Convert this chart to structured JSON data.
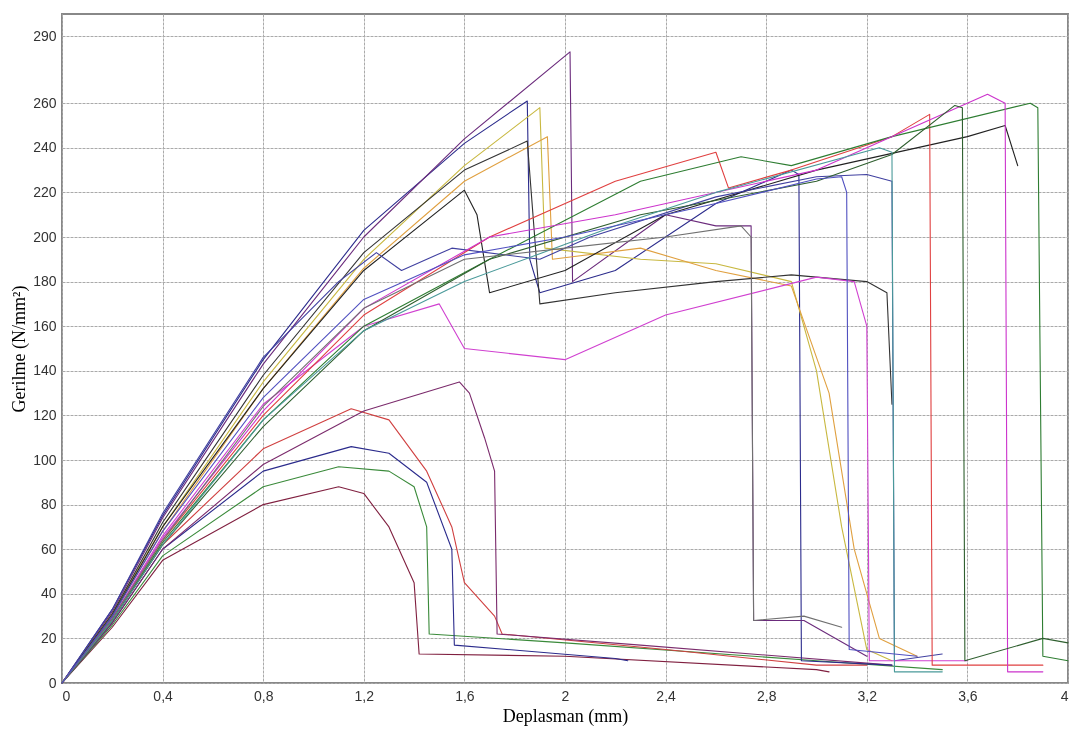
{
  "chart_data": {
    "type": "line",
    "xlabel": "Deplasman (mm)",
    "ylabel": "Gerilme (N/mm²)",
    "xlim": [
      0,
      4
    ],
    "ylim": [
      0,
      300
    ],
    "xticks": [
      0,
      {
        "value": 0.4,
        "label": "0,4"
      },
      {
        "value": 0.8,
        "label": "0,8"
      },
      {
        "value": 1.2,
        "label": "1,2"
      },
      {
        "value": 1.6,
        "label": "1,6"
      },
      2,
      {
        "value": 2.4,
        "label": "2,4"
      },
      {
        "value": 2.8,
        "label": "2,8"
      },
      {
        "value": 3.2,
        "label": "3,2"
      },
      {
        "value": 3.6,
        "label": "3,6"
      },
      4
    ],
    "yticks": [
      0,
      20,
      40,
      60,
      80,
      100,
      120,
      140,
      160,
      180,
      200,
      220,
      240,
      260,
      290
    ],
    "grid": true,
    "legend": false,
    "line_style": "solid",
    "marker": "none",
    "series": [
      {
        "color": "#802040",
        "x": [
          0,
          0.2,
          0.4,
          0.8,
          1.1,
          1.2,
          1.3,
          1.4,
          1.42,
          2,
          3,
          3.05
        ],
        "values": [
          0,
          25,
          55,
          80,
          88,
          85,
          70,
          45,
          13,
          12,
          6,
          5
        ]
      },
      {
        "color": "#3a8a3a",
        "x": [
          0,
          0.2,
          0.4,
          0.8,
          1.1,
          1.3,
          1.4,
          1.45,
          1.46,
          2,
          3,
          3.5
        ],
        "values": [
          0,
          26,
          57,
          88,
          97,
          95,
          88,
          70,
          22,
          18,
          10,
          6
        ]
      },
      {
        "color": "#2b2b8c",
        "x": [
          0,
          0.2,
          0.4,
          0.8,
          1.15,
          1.3,
          1.45,
          1.55,
          1.56,
          2.2,
          2.25
        ],
        "values": [
          0,
          27,
          60,
          95,
          106,
          103,
          90,
          60,
          17,
          11,
          10
        ]
      },
      {
        "color": "#d04040",
        "x": [
          0,
          0.2,
          0.4,
          0.8,
          1.15,
          1.3,
          1.45,
          1.55,
          1.6,
          1.72,
          1.75,
          2.4,
          3,
          3.2
        ],
        "values": [
          0,
          28,
          62,
          105,
          123,
          118,
          95,
          70,
          45,
          30,
          22,
          15,
          8,
          8
        ]
      },
      {
        "color": "#7b2b6c",
        "x": [
          0,
          0.2,
          0.4,
          0.8,
          1.2,
          1.58,
          1.62,
          1.68,
          1.72,
          1.73,
          2.3,
          3.3
        ],
        "values": [
          0,
          27,
          60,
          98,
          122,
          135,
          130,
          110,
          95,
          22,
          17,
          8
        ]
      },
      {
        "color": "#2b2b8c",
        "x": [
          0,
          0.2,
          0.4,
          0.8,
          1.2,
          1.6,
          1.85,
          1.86,
          1.9,
          2.2,
          2.6,
          2.9,
          2.93,
          2.94,
          3.3
        ],
        "values": [
          0,
          33,
          75,
          145,
          203,
          242,
          261,
          190,
          175,
          185,
          215,
          230,
          228,
          10,
          8
        ]
      },
      {
        "color": "#6b2b7c",
        "x": [
          0,
          0.2,
          0.4,
          0.8,
          1.2,
          1.6,
          2.02,
          2.03,
          2.4,
          2.6,
          2.74,
          2.75,
          2.95,
          3.2
        ],
        "values": [
          0,
          32,
          74,
          143,
          200,
          244,
          283,
          180,
          210,
          205,
          205,
          28,
          28,
          12
        ]
      },
      {
        "color": "#c8b840",
        "x": [
          0,
          0.2,
          0.4,
          0.8,
          1.2,
          1.6,
          1.9,
          1.92,
          2.3,
          2.6,
          2.9,
          3,
          3.1,
          3.2,
          3.3
        ],
        "values": [
          0,
          31,
          70,
          135,
          190,
          232,
          258,
          195,
          190,
          188,
          180,
          140,
          70,
          15,
          10
        ]
      },
      {
        "color": "#e0a040",
        "x": [
          0,
          0.2,
          0.4,
          0.8,
          1.2,
          1.6,
          1.93,
          1.95,
          2.3,
          2.6,
          2.9,
          3.05,
          3.15,
          3.25,
          3.4
        ],
        "values": [
          0,
          30,
          68,
          132,
          186,
          225,
          245,
          190,
          195,
          185,
          178,
          130,
          60,
          20,
          12
        ]
      },
      {
        "color": "#333333",
        "x": [
          0,
          0.2,
          0.4,
          0.8,
          1.2,
          1.6,
          1.85,
          1.9,
          2.2,
          2.6,
          2.9,
          3.2,
          3.28,
          3.3
        ],
        "values": [
          0,
          31,
          72,
          138,
          193,
          230,
          243,
          170,
          175,
          180,
          183,
          180,
          175,
          125
        ]
      },
      {
        "color": "#222222",
        "x": [
          0,
          0.2,
          0.4,
          0.8,
          1.2,
          1.6,
          1.65,
          1.7,
          2,
          2.4,
          3,
          3.6,
          3.75,
          3.8
        ],
        "values": [
          0,
          30,
          70,
          132,
          185,
          221,
          210,
          175,
          185,
          210,
          230,
          245,
          250,
          232
        ]
      },
      {
        "color": "#4040a0",
        "x": [
          0,
          0.2,
          0.4,
          0.8,
          1.1,
          1.25,
          1.35,
          1.55,
          1.9,
          2.1,
          2.6,
          3,
          3.2,
          3.3,
          3.31,
          3.5
        ],
        "values": [
          0,
          33,
          76,
          146,
          180,
          193,
          185,
          195,
          190,
          200,
          218,
          227,
          228,
          225,
          10,
          13
        ]
      },
      {
        "color": "#d040d0",
        "x": [
          0,
          0.2,
          0.4,
          0.8,
          1.2,
          1.5,
          1.6,
          2,
          2.4,
          3,
          3.15,
          3.2,
          3.21,
          3.6
        ],
        "values": [
          0,
          29,
          66,
          125,
          160,
          170,
          150,
          145,
          165,
          182,
          180,
          160,
          10,
          10
        ]
      },
      {
        "color": "#e04040",
        "x": [
          0,
          0.2,
          0.4,
          0.8,
          1.2,
          1.7,
          2.2,
          2.6,
          2.65,
          2.9,
          3.3,
          3.45,
          3.46,
          3.9
        ],
        "values": [
          0,
          28,
          64,
          120,
          165,
          200,
          225,
          238,
          222,
          230,
          245,
          255,
          8,
          8
        ]
      },
      {
        "color": "#2e7d32",
        "x": [
          0,
          0.2,
          0.4,
          0.8,
          1.2,
          1.7,
          2.3,
          2.7,
          2.9,
          3.3,
          3.85,
          3.88,
          3.9,
          4
        ],
        "values": [
          0,
          28,
          63,
          118,
          160,
          190,
          225,
          236,
          232,
          245,
          260,
          258,
          12,
          10
        ]
      },
      {
        "color": "#cc33cc",
        "x": [
          0,
          0.2,
          0.4,
          0.8,
          1.2,
          1.7,
          2.2,
          3,
          3.4,
          3.68,
          3.75,
          3.76,
          3.9
        ],
        "values": [
          0,
          29,
          65,
          122,
          168,
          200,
          210,
          230,
          250,
          264,
          260,
          5,
          5
        ]
      },
      {
        "color": "#2f5f2f",
        "x": [
          0,
          0.2,
          0.4,
          0.8,
          1.2,
          1.7,
          2.3,
          3,
          3.3,
          3.55,
          3.58,
          3.59,
          3.9,
          4
        ],
        "values": [
          0,
          28,
          62,
          115,
          158,
          190,
          210,
          225,
          237,
          259,
          258,
          10,
          20,
          18
        ]
      },
      {
        "color": "#4a9a9a",
        "x": [
          0,
          0.2,
          0.4,
          0.8,
          1.2,
          1.6,
          2.2,
          2.6,
          3.25,
          3.3,
          3.31,
          3.5
        ],
        "values": [
          0,
          28,
          62,
          118,
          158,
          180,
          205,
          220,
          240,
          238,
          5,
          5
        ]
      },
      {
        "color": "#707070",
        "x": [
          0,
          0.2,
          0.4,
          0.8,
          1.2,
          1.6,
          2,
          2.4,
          2.7,
          2.74,
          2.75,
          2.95,
          3.1
        ],
        "values": [
          0,
          29,
          64,
          124,
          168,
          190,
          195,
          200,
          205,
          200,
          28,
          30,
          25
        ]
      },
      {
        "color": "#5050c0",
        "x": [
          0,
          0.2,
          0.4,
          0.8,
          1.2,
          1.6,
          2,
          2.6,
          3,
          3.1,
          3.12,
          3.13,
          3.4
        ],
        "values": [
          0,
          30,
          68,
          128,
          172,
          192,
          200,
          215,
          226,
          227,
          220,
          15,
          12
        ]
      }
    ]
  }
}
